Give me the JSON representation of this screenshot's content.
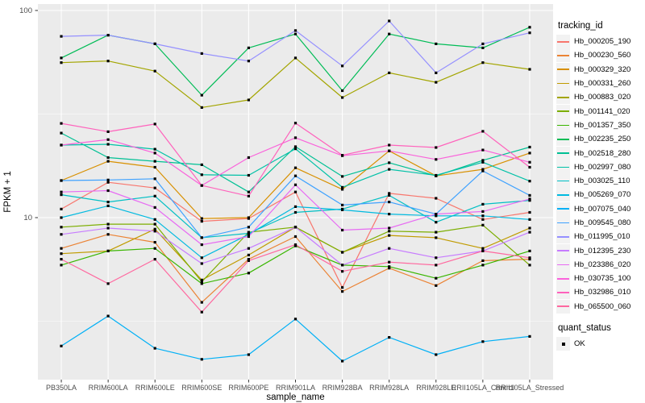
{
  "figure": {
    "panel_bg": "#EBEBEB",
    "grid_color": "#FFFFFF",
    "tick_color": "#333333",
    "tick_label_color": "#4D4D4D",
    "axis_title_color": "#000000",
    "point_color": "#000000",
    "legend_key_bg": "#F2F2F2"
  },
  "axes": {
    "x_title": "sample_name",
    "y_title": "FPKM + 1",
    "y_tick_labels": [
      "100",
      "10"
    ],
    "y_tick_values": [
      100,
      10
    ],
    "y_minor_values": [
      31.623,
      3.1623
    ]
  },
  "legend": {
    "tracking_title": "tracking_id",
    "quant_title": "quant_status",
    "quant_items": [
      {
        "label": "OK",
        "marker": "black-square"
      }
    ]
  },
  "chart_data": {
    "type": "line",
    "title": "",
    "xlabel": "sample_name",
    "ylabel": "FPKM + 1",
    "y_scale": "log10",
    "ylim": [
      1.67,
      107
    ],
    "grid": true,
    "legend_position": "right",
    "point_marker": "black-square",
    "categories": [
      "PB350LA",
      "RRIM600LA",
      "RRIM600LE",
      "RRIM600SE",
      "RRIM600PE",
      "RRIM901LA",
      "RRIM928BA",
      "RRIM928LA",
      "RRIM928LE",
      "RRII105LA_Control",
      "RRII105LA_Stressed"
    ],
    "series": [
      {
        "name": "Hb_000205_190",
        "color": "#F8766D",
        "values": [
          11.0,
          14.8,
          13.9,
          9.6,
          9.9,
          13.3,
          4.6,
          13.1,
          12.4,
          9.8,
          10.6
        ]
      },
      {
        "name": "Hb_000230_560",
        "color": "#EB8335",
        "values": [
          7.1,
          8.3,
          7.6,
          3.9,
          6.3,
          8.1,
          4.4,
          5.7,
          4.7,
          6.2,
          6.3
        ]
      },
      {
        "name": "Hb_000329_320",
        "color": "#D89000",
        "values": [
          15.1,
          18.7,
          17.5,
          9.9,
          10.0,
          17.4,
          13.7,
          21.0,
          15.9,
          17.1,
          20.5
        ]
      },
      {
        "name": "Hb_000331_260",
        "color": "#C09B00",
        "values": [
          6.7,
          6.9,
          8.8,
          5.0,
          6.6,
          9.0,
          6.8,
          8.2,
          8.0,
          7.1,
          8.9
        ]
      },
      {
        "name": "Hb_000883_020",
        "color": "#A3A500",
        "values": [
          56,
          57,
          51,
          34,
          37,
          59,
          38,
          50,
          45,
          56,
          52
        ]
      },
      {
        "name": "Hb_001141_020",
        "color": "#7CAE00",
        "values": [
          9.0,
          9.3,
          9.3,
          4.9,
          8.5,
          9.0,
          6.8,
          8.6,
          8.5,
          9.2,
          5.9
        ]
      },
      {
        "name": "Hb_001357_350",
        "color": "#39B600",
        "values": [
          5.9,
          6.9,
          7.1,
          4.8,
          5.4,
          7.3,
          5.9,
          5.8,
          5.1,
          5.9,
          6.9
        ]
      },
      {
        "name": "Hb_002235_250",
        "color": "#00BC56",
        "values": [
          59,
          76,
          69,
          39,
          66,
          77,
          41,
          77,
          69,
          66,
          83
        ]
      },
      {
        "name": "Hb_002518_280",
        "color": "#00C094",
        "values": [
          25.6,
          19.5,
          18.7,
          18.0,
          13.3,
          22.0,
          15.8,
          18.4,
          15.9,
          18.9,
          21.9
        ]
      },
      {
        "name": "Hb_002997_080",
        "color": "#00C1A7",
        "values": [
          22.4,
          22.6,
          21.4,
          16.1,
          16.0,
          21.5,
          14.0,
          17.1,
          16.0,
          18.5,
          15.0
        ]
      },
      {
        "name": "Hb_003025_110",
        "color": "#00BFC4",
        "values": [
          12.9,
          11.9,
          12.7,
          8.0,
          8.4,
          10.6,
          11.0,
          12.8,
          9.5,
          11.6,
          12.1
        ]
      },
      {
        "name": "Hb_005269_070",
        "color": "#00BAE0",
        "values": [
          10.0,
          11.4,
          9.8,
          6.4,
          8.3,
          11.3,
          10.9,
          10.4,
          10.2,
          10.2,
          9.8
        ]
      },
      {
        "name": "Hb_007075_040",
        "color": "#00B0F6",
        "values": [
          2.4,
          3.35,
          2.34,
          2.07,
          2.18,
          3.24,
          2.03,
          2.64,
          2.18,
          2.52,
          2.67
        ]
      },
      {
        "name": "Hb_009545_080",
        "color": "#3FA2FF",
        "values": [
          15.1,
          15.2,
          15.4,
          8.0,
          9.0,
          15.9,
          11.5,
          11.9,
          10.4,
          16.8,
          12.8
        ]
      },
      {
        "name": "Hb_011995_010",
        "color": "#9590FF",
        "values": [
          75,
          76,
          69,
          62,
          57,
          80,
          54,
          89,
          50,
          69,
          78
        ]
      },
      {
        "name": "Hb_012395_230",
        "color": "#C77CFF",
        "values": [
          8.3,
          8.9,
          8.6,
          6.0,
          7.1,
          9.0,
          5.9,
          7.1,
          6.4,
          6.9,
          8.5
        ]
      },
      {
        "name": "Hb_023386_020",
        "color": "#E76BF3",
        "values": [
          13.3,
          13.5,
          11.2,
          7.4,
          8.1,
          14.4,
          8.7,
          8.9,
          10.4,
          10.7,
          12.3
        ]
      },
      {
        "name": "Hb_030735_100",
        "color": "#FA62DB",
        "values": [
          22.4,
          23.8,
          20.5,
          14.3,
          19.5,
          24.3,
          19.9,
          21.0,
          19.1,
          21.2,
          18.5
        ]
      },
      {
        "name": "Hb_032986_010",
        "color": "#FF62BC",
        "values": [
          28.5,
          26.0,
          28.3,
          14.3,
          12.7,
          28.6,
          20.0,
          22.4,
          21.8,
          26.1,
          17.5
        ]
      },
      {
        "name": "Hb_065500_060",
        "color": "#FF689F",
        "values": [
          6.3,
          4.8,
          6.3,
          3.5,
          6.2,
          7.4,
          5.5,
          6.1,
          5.9,
          6.9,
          6.4
        ]
      }
    ]
  }
}
